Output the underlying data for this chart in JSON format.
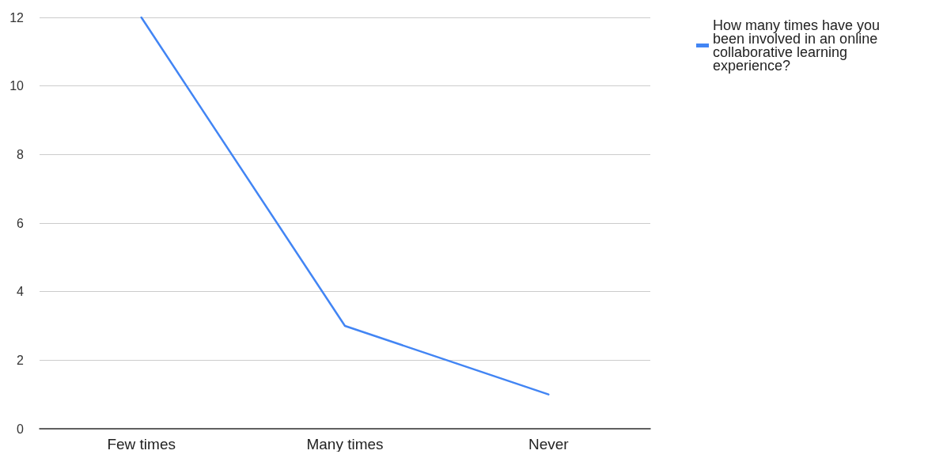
{
  "chart_data": {
    "type": "line",
    "categories": [
      "Few times",
      "Many times",
      "Never"
    ],
    "series": [
      {
        "name": "How many times have you been involved in an online collaborative learning experience?",
        "color": "#4285f4",
        "values": [
          12,
          3,
          1
        ]
      }
    ],
    "ylim": [
      0,
      12
    ],
    "yticks": [
      0,
      2,
      4,
      6,
      8,
      10,
      12
    ],
    "grid": "y",
    "legend": "top right",
    "marker": "none",
    "line_style": "solid"
  }
}
